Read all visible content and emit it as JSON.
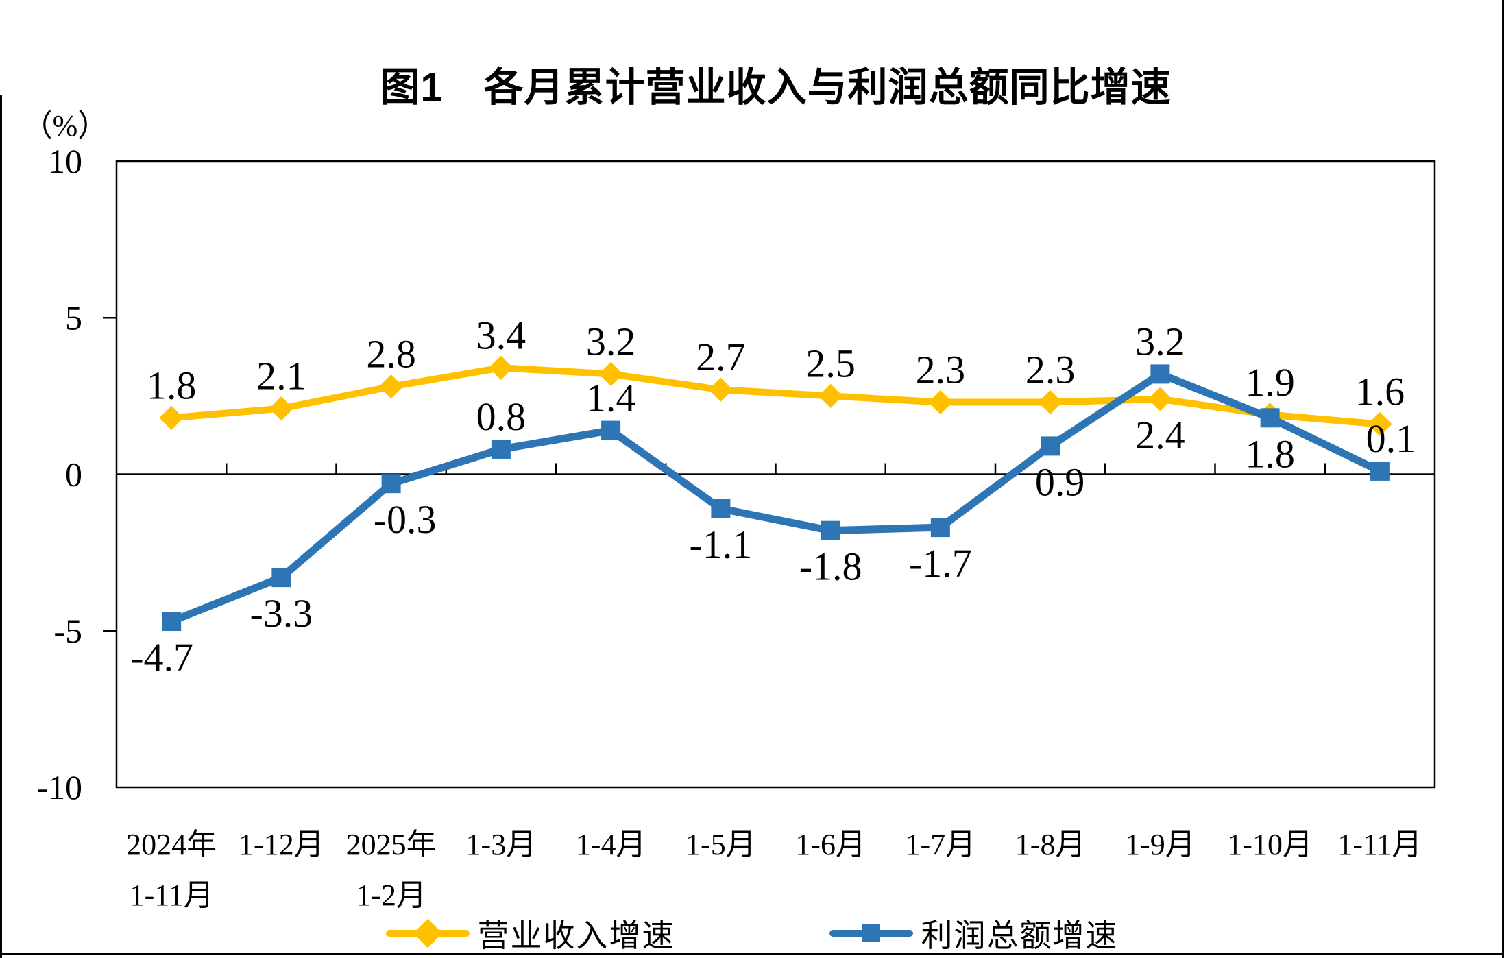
{
  "chart_data": {
    "type": "line",
    "title": "图1　各月累计营业收入与利润总额同比增速",
    "unit_label": "（%）",
    "ylim": [
      -10,
      10
    ],
    "yticks": [
      10,
      5,
      0,
      -5,
      -10
    ],
    "grid": "zero-axis-line-only",
    "legend_position": "bottom",
    "axis_color": "#000000",
    "categories": [
      [
        "2024年",
        "1-11月"
      ],
      [
        "1-12月"
      ],
      [
        "2025年",
        "1-2月"
      ],
      [
        "1-3月"
      ],
      [
        "1-4月"
      ],
      [
        "1-5月"
      ],
      [
        "1-6月"
      ],
      [
        "1-7月"
      ],
      [
        "1-8月"
      ],
      [
        "1-9月"
      ],
      [
        "1-10月"
      ],
      [
        "1-11月"
      ]
    ],
    "series": [
      {
        "name": "营业收入增速",
        "color": "#FFC000",
        "marker": "diamond",
        "values": [
          1.8,
          2.1,
          2.8,
          3.4,
          3.2,
          2.7,
          2.5,
          2.3,
          2.3,
          2.4,
          1.9,
          1.6
        ],
        "label_positions": [
          "above",
          "above",
          "above",
          "above",
          "above",
          "above",
          "above",
          "above",
          "above",
          "below",
          "above",
          "above"
        ]
      },
      {
        "name": "利润总额增速",
        "color": "#2E75B6",
        "marker": "square",
        "values": [
          -4.7,
          -3.3,
          -0.3,
          0.8,
          1.4,
          -1.1,
          -1.8,
          -1.7,
          0.9,
          3.2,
          1.8,
          0.1
        ],
        "label_positions": [
          "below",
          "below",
          "below",
          "above",
          "above",
          "below",
          "below",
          "below",
          "below",
          "above",
          "below",
          "above"
        ]
      }
    ]
  }
}
